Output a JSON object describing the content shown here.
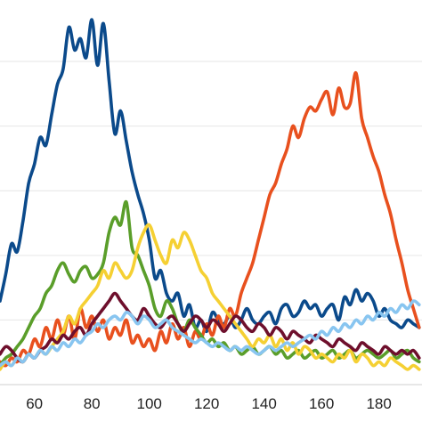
{
  "chart_data": {
    "type": "line",
    "title": "",
    "xlabel": "",
    "ylabel": "",
    "xlim": [
      48,
      195
    ],
    "ylim": [
      0,
      100
    ],
    "x_ticks": [
      60,
      80,
      100,
      120,
      140,
      160,
      180
    ],
    "y_gridlines": [
      17,
      34,
      51,
      68,
      85
    ],
    "legend": "none",
    "grid": "horizontal",
    "x": [
      48,
      50,
      52,
      54,
      56,
      58,
      60,
      62,
      64,
      66,
      68,
      70,
      72,
      74,
      76,
      78,
      80,
      82,
      84,
      86,
      88,
      90,
      92,
      94,
      96,
      98,
      100,
      102,
      104,
      106,
      108,
      110,
      112,
      114,
      116,
      118,
      120,
      122,
      124,
      126,
      128,
      130,
      132,
      134,
      136,
      138,
      140,
      142,
      144,
      146,
      148,
      150,
      152,
      154,
      156,
      158,
      160,
      162,
      164,
      166,
      168,
      170,
      172,
      174,
      176,
      178,
      180,
      182,
      184,
      186,
      188,
      190,
      192,
      194
    ],
    "series": [
      {
        "color": "#0b4a8b",
        "values": [
          22,
          29,
          37,
          35,
          43,
          53,
          58,
          65,
          63,
          71,
          79,
          83,
          94,
          88,
          91,
          86,
          96,
          84,
          95,
          80,
          66,
          72,
          64,
          56,
          50,
          45,
          38,
          28,
          30,
          24,
          22,
          24,
          18,
          21,
          15,
          17,
          14,
          19,
          17,
          16,
          18,
          15,
          17,
          20,
          17,
          16,
          18,
          19,
          16,
          20,
          21,
          18,
          19,
          22,
          20,
          21,
          18,
          20,
          21,
          17,
          23,
          21,
          25,
          22,
          24,
          22,
          18,
          20,
          17,
          16,
          15,
          17,
          16,
          15
        ]
      },
      {
        "color": "#e8501e",
        "values": [
          6,
          5,
          7,
          6,
          9,
          8,
          12,
          10,
          15,
          12,
          17,
          13,
          18,
          12,
          20,
          15,
          18,
          14,
          17,
          12,
          15,
          13,
          17,
          11,
          13,
          10,
          12,
          9,
          14,
          11,
          16,
          12,
          15,
          10,
          14,
          12,
          16,
          13,
          18,
          15,
          20,
          18,
          24,
          28,
          32,
          38,
          44,
          50,
          53,
          58,
          62,
          68,
          65,
          70,
          73,
          72,
          75,
          77,
          71,
          78,
          73,
          74,
          82,
          70,
          65,
          60,
          56,
          50,
          45,
          38,
          32,
          25,
          20,
          15
        ]
      },
      {
        "color": "#5a9e2a",
        "values": [
          5,
          7,
          8,
          10,
          12,
          15,
          18,
          20,
          24,
          26,
          30,
          32,
          29,
          27,
          30,
          31,
          28,
          29,
          32,
          40,
          44,
          42,
          48,
          36,
          34,
          30,
          26,
          20,
          18,
          22,
          20,
          16,
          14,
          17,
          15,
          13,
          11,
          12,
          10,
          11,
          9,
          10,
          8,
          9,
          10,
          8,
          9,
          10,
          8,
          9,
          7,
          8,
          9,
          7,
          8,
          9,
          7,
          8,
          9,
          7,
          8,
          9,
          7,
          8,
          9,
          8,
          7,
          8,
          9,
          7,
          8,
          9,
          7,
          6
        ]
      },
      {
        "color": "#f5d033",
        "values": [
          4,
          6,
          5,
          7,
          6,
          8,
          7,
          9,
          8,
          10,
          12,
          14,
          18,
          16,
          20,
          22,
          24,
          26,
          30,
          28,
          32,
          30,
          28,
          30,
          36,
          40,
          42,
          38,
          34,
          32,
          38,
          36,
          40,
          38,
          34,
          30,
          28,
          24,
          22,
          20,
          18,
          16,
          14,
          12,
          10,
          12,
          11,
          13,
          10,
          12,
          9,
          11,
          8,
          10,
          9,
          7,
          8,
          7,
          6,
          8,
          7,
          9,
          6,
          8,
          7,
          5,
          6,
          5,
          7,
          6,
          5,
          4,
          5,
          4
        ]
      },
      {
        "color": "#6e0f2c",
        "values": [
          8,
          10,
          9,
          7,
          6,
          8,
          7,
          9,
          10,
          12,
          11,
          13,
          12,
          14,
          15,
          13,
          16,
          18,
          20,
          22,
          24,
          22,
          20,
          18,
          17,
          20,
          18,
          16,
          15,
          17,
          18,
          16,
          14,
          16,
          18,
          17,
          15,
          17,
          16,
          14,
          16,
          18,
          17,
          15,
          14,
          16,
          15,
          13,
          15,
          14,
          12,
          14,
          13,
          12,
          11,
          13,
          12,
          11,
          10,
          12,
          11,
          10,
          9,
          11,
          10,
          9,
          8,
          10,
          9,
          8,
          9,
          8,
          9,
          7
        ]
      },
      {
        "color": "#88c5f0",
        "values": [
          5,
          6,
          5,
          7,
          6,
          8,
          7,
          9,
          8,
          10,
          9,
          11,
          10,
          12,
          11,
          13,
          14,
          16,
          15,
          17,
          18,
          17,
          19,
          18,
          16,
          18,
          17,
          15,
          16,
          17,
          15,
          14,
          13,
          12,
          11,
          12,
          11,
          10,
          11,
          10,
          9,
          10,
          9,
          10,
          9,
          8,
          9,
          10,
          9,
          10,
          11,
          10,
          11,
          12,
          13,
          12,
          14,
          13,
          15,
          14,
          16,
          15,
          17,
          16,
          18,
          17,
          19,
          18,
          20,
          19,
          21,
          20,
          22,
          21
        ]
      }
    ]
  }
}
